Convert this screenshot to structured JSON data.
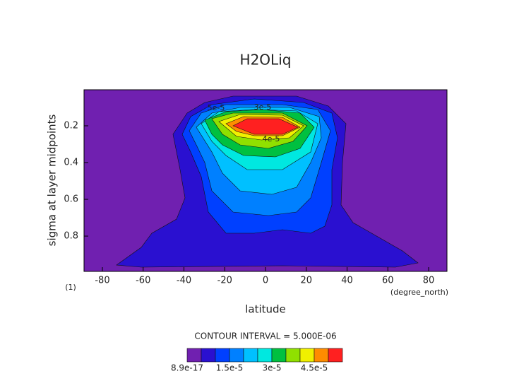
{
  "chart_data": {
    "type": "contour",
    "title": "H2OLiq",
    "x_label": "latitude",
    "y_label": "sigma at layer midpoints",
    "x_units": "(degree_north)",
    "y_units": "(1)",
    "xlim": [
      -89,
      89
    ],
    "xticks": [
      -80,
      -60,
      -40,
      -20,
      0,
      20,
      40,
      60,
      80
    ],
    "ylim": [
      0.004,
      0.992
    ],
    "y_inverted": true,
    "yticks": [
      0.2,
      0.4,
      0.6,
      0.8
    ],
    "contour_interval": "CONTOUR INTERVAL = 5.000E-06",
    "levels": [
      8.9e-17,
      5e-06,
      1e-05,
      1.5e-05,
      2e-05,
      2.5e-05,
      3e-05,
      3.5e-05,
      4e-05,
      4.5e-05,
      5e-05
    ],
    "colors": [
      "#7020b0",
      "#2a10d0",
      "#0040ff",
      "#0080ff",
      "#00c0ff",
      "#00e8e0",
      "#00c040",
      "#90e000",
      "#f0f000",
      "#ff8c00",
      "#ff2020"
    ],
    "colorbar_ticks": [
      {
        "value": 8.9e-17,
        "label": "8.9e-17"
      },
      {
        "value": 1.5e-05,
        "label": "1.5e-5"
      },
      {
        "value": 3e-05,
        "label": "3e-5"
      },
      {
        "value": 4.5e-05,
        "label": "4.5e-5"
      }
    ],
    "contour_labels": [
      "5e-5",
      "3e-5",
      "4e-5"
    ]
  }
}
